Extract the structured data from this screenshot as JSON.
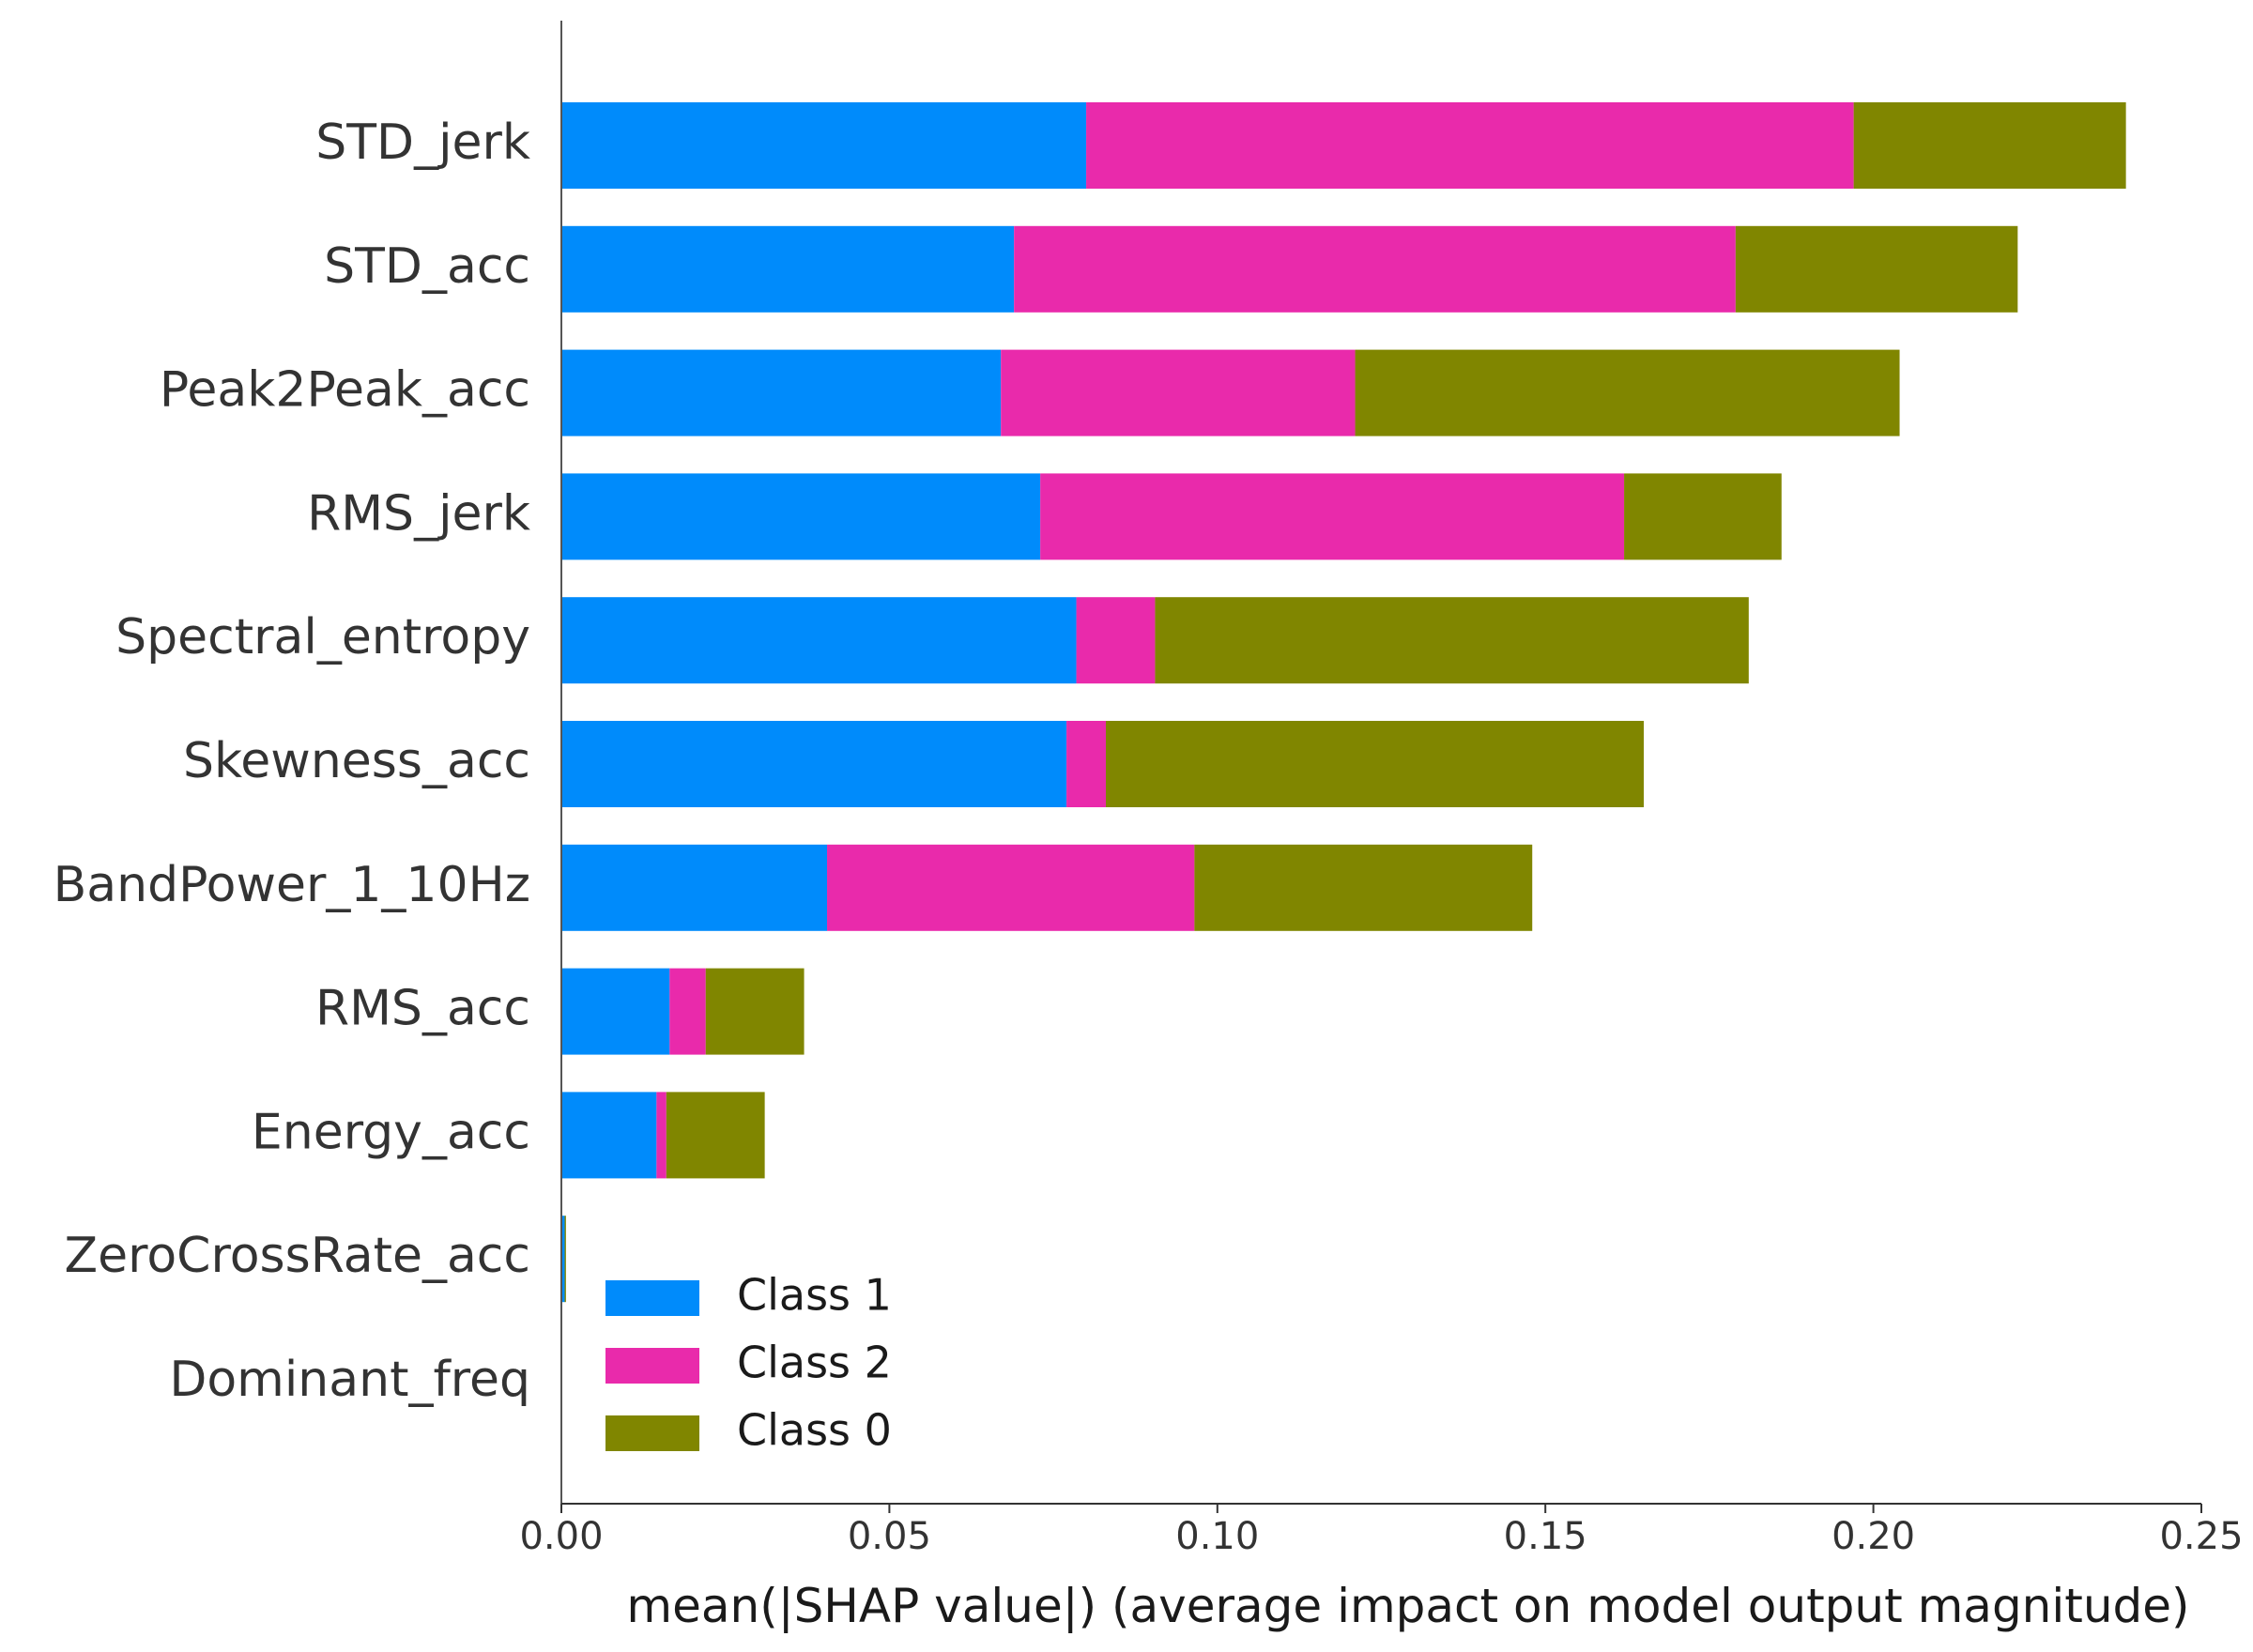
{
  "chart_data": {
    "type": "bar",
    "orientation": "horizontal",
    "stacked": true,
    "categories": [
      "STD_jerk",
      "STD_acc",
      "Peak2Peak_acc",
      "RMS_jerk",
      "Spectral_entropy",
      "Skewness_acc",
      "BandPower_1_10Hz",
      "RMS_acc",
      "Energy_acc",
      "ZeroCrossRate_acc",
      "Dominant_freq"
    ],
    "series": [
      {
        "name": "Class 1",
        "color": "#008bfb",
        "values": [
          0.08,
          0.069,
          0.067,
          0.073,
          0.0785,
          0.077,
          0.0405,
          0.0165,
          0.0145,
          0.0005,
          0.0
        ]
      },
      {
        "name": "Class 2",
        "color": "#e92aab",
        "values": [
          0.117,
          0.11,
          0.054,
          0.089,
          0.012,
          0.006,
          0.056,
          0.0055,
          0.0015,
          0.0,
          0.0
        ]
      },
      {
        "name": "Class 0",
        "color": "#808600",
        "values": [
          0.0415,
          0.043,
          0.083,
          0.024,
          0.0905,
          0.082,
          0.0515,
          0.015,
          0.015,
          0.0002,
          0.0
        ]
      }
    ],
    "legend": [
      "Class 1",
      "Class 2",
      "Class 0"
    ],
    "legend_position": "bottom-left",
    "xlabel": "mean(|SHAP value|) (average impact on model output magnitude)",
    "ylabel": "",
    "title": "",
    "xlim": [
      0,
      0.25
    ],
    "xticks": [
      0.0,
      0.05,
      0.1,
      0.15,
      0.2,
      0.25
    ],
    "xtick_labels": [
      "0.00",
      "0.05",
      "0.10",
      "0.15",
      "0.20",
      "0.25"
    ],
    "grid": false
  }
}
